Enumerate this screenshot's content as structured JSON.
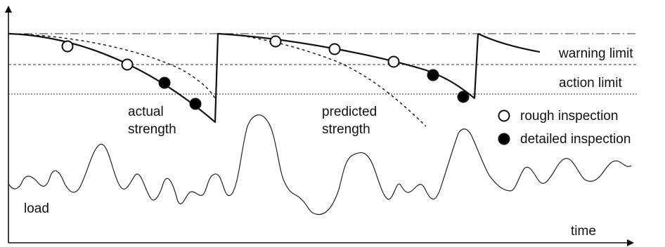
{
  "labels": {
    "warning_limit": "warning limit",
    "action_limit": "action limit",
    "actual_strength_line1": "actual",
    "actual_strength_line2": "strength",
    "predicted_strength_line1": "predicted",
    "predicted_strength_line2": "strength",
    "load": "load",
    "time": "time"
  },
  "legend": {
    "rough_inspection": "rough inspection",
    "detailed_inspection": "detailed inspection"
  },
  "colors": {
    "line": "#111111",
    "rough_marker_fill": "#ffffff",
    "detailed_marker_fill": "#000000"
  }
}
